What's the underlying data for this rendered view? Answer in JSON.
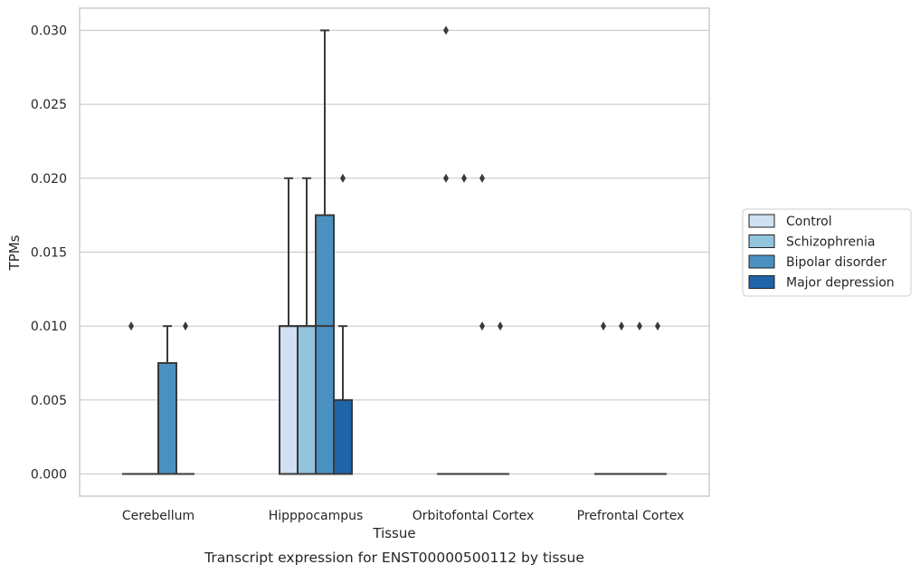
{
  "chart_data": {
    "type": "box",
    "title": "",
    "caption": "Transcript expression for ENST00000500112 by tissue",
    "xlabel": "Tissue",
    "ylabel": "TPMs",
    "ylim": [
      -0.0015,
      0.0315
    ],
    "yticks": [
      0.0,
      0.005,
      0.01,
      0.015,
      0.02,
      0.025,
      0.03
    ],
    "ytick_labels": [
      "0.000",
      "0.005",
      "0.010",
      "0.015",
      "0.020",
      "0.025",
      "0.030"
    ],
    "categories": [
      "Cerebellum",
      "Hipppocampus",
      "Orbitofontal Cortex",
      "Prefrontal Cortex"
    ],
    "grid": "horizontal",
    "legend_position": "right",
    "series": [
      {
        "name": "Control",
        "color": "#cfe1f2",
        "boxes": [
          {
            "q1": 0.0,
            "median": 0.0,
            "q3": 0.0,
            "whisker_low": 0.0,
            "whisker_high": 0.0,
            "outliers": [
              0.01
            ]
          },
          {
            "q1": 0.0,
            "median": 0.01,
            "q3": 0.01,
            "whisker_low": 0.0,
            "whisker_high": 0.02,
            "outliers": []
          },
          {
            "q1": 0.0,
            "median": 0.0,
            "q3": 0.0,
            "whisker_low": 0.0,
            "whisker_high": 0.0,
            "outliers": [
              0.02,
              0.03
            ]
          },
          {
            "q1": 0.0,
            "median": 0.0,
            "q3": 0.0,
            "whisker_low": 0.0,
            "whisker_high": 0.0,
            "outliers": [
              0.01
            ]
          }
        ]
      },
      {
        "name": "Schizophrenia",
        "color": "#93c4de",
        "boxes": [
          {
            "q1": 0.0,
            "median": 0.0,
            "q3": 0.0,
            "whisker_low": 0.0,
            "whisker_high": 0.0,
            "outliers": []
          },
          {
            "q1": 0.0,
            "median": 0.01,
            "q3": 0.01,
            "whisker_low": 0.0,
            "whisker_high": 0.02,
            "outliers": []
          },
          {
            "q1": 0.0,
            "median": 0.0,
            "q3": 0.0,
            "whisker_low": 0.0,
            "whisker_high": 0.0,
            "outliers": [
              0.02
            ]
          },
          {
            "q1": 0.0,
            "median": 0.0,
            "q3": 0.0,
            "whisker_low": 0.0,
            "whisker_high": 0.0,
            "outliers": [
              0.01
            ]
          }
        ]
      },
      {
        "name": "Bipolar disorder",
        "color": "#4a91c2",
        "boxes": [
          {
            "q1": 0.0,
            "median": 0.0,
            "q3": 0.0075,
            "whisker_low": 0.0,
            "whisker_high": 0.01,
            "outliers": []
          },
          {
            "q1": 0.0,
            "median": 0.01,
            "q3": 0.0175,
            "whisker_low": 0.0,
            "whisker_high": 0.03,
            "outliers": []
          },
          {
            "q1": 0.0,
            "median": 0.0,
            "q3": 0.0,
            "whisker_low": 0.0,
            "whisker_high": 0.0,
            "outliers": [
              0.02,
              0.01
            ]
          },
          {
            "q1": 0.0,
            "median": 0.0,
            "q3": 0.0,
            "whisker_low": 0.0,
            "whisker_high": 0.0,
            "outliers": [
              0.01
            ]
          }
        ]
      },
      {
        "name": "Major depression",
        "color": "#1f63a8",
        "boxes": [
          {
            "q1": 0.0,
            "median": 0.0,
            "q3": 0.0,
            "whisker_low": 0.0,
            "whisker_high": 0.0,
            "outliers": [
              0.01
            ]
          },
          {
            "q1": 0.0,
            "median": 0.0,
            "q3": 0.005,
            "whisker_low": 0.0,
            "whisker_high": 0.01,
            "outliers": [
              0.02
            ]
          },
          {
            "q1": 0.0,
            "median": 0.0,
            "q3": 0.0,
            "whisker_low": 0.0,
            "whisker_high": 0.0,
            "outliers": [
              0.01
            ]
          },
          {
            "q1": 0.0,
            "median": 0.0,
            "q3": 0.0,
            "whisker_low": 0.0,
            "whisker_high": 0.0,
            "outliers": [
              0.01
            ]
          }
        ]
      }
    ]
  }
}
